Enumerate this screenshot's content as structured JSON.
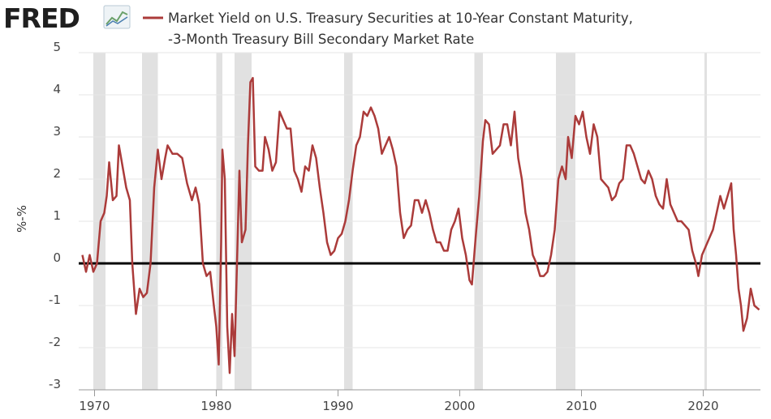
{
  "brand": "FRED",
  "chart_data": {
    "type": "line",
    "title_lines": [
      "Market Yield on U.S. Treasury Securities at 10-Year Constant Maturity,",
      "-3-Month Treasury Bill Secondary Market Rate"
    ],
    "y_label": "%-%",
    "series": [
      {
        "name": "Market Yield on U.S. Treasury Securities at 10-Year Constant Maturity, -3-Month Treasury Bill Secondary Market Rate",
        "color": "#ab3b3a",
        "x": [
          1969.0,
          1969.3,
          1969.6,
          1969.9,
          1970.2,
          1970.5,
          1970.8,
          1971.0,
          1971.2,
          1971.5,
          1971.8,
          1972.0,
          1972.3,
          1972.6,
          1972.9,
          1973.1,
          1973.4,
          1973.7,
          1974.0,
          1974.3,
          1974.6,
          1974.9,
          1975.2,
          1975.5,
          1975.8,
          1976.0,
          1976.4,
          1976.8,
          1977.2,
          1977.6,
          1978.0,
          1978.3,
          1978.6,
          1978.9,
          1979.2,
          1979.5,
          1979.8,
          1980.0,
          1980.2,
          1980.4,
          1980.5,
          1980.7,
          1980.9,
          1981.1,
          1981.3,
          1981.5,
          1981.7,
          1981.9,
          1982.1,
          1982.4,
          1982.6,
          1982.8,
          1983.0,
          1983.2,
          1983.5,
          1983.8,
          1984.0,
          1984.3,
          1984.6,
          1984.9,
          1985.2,
          1985.5,
          1985.8,
          1986.1,
          1986.4,
          1986.7,
          1987.0,
          1987.3,
          1987.6,
          1987.9,
          1988.2,
          1988.5,
          1988.8,
          1989.1,
          1989.4,
          1989.7,
          1990.0,
          1990.3,
          1990.6,
          1990.9,
          1991.2,
          1991.5,
          1991.8,
          1992.1,
          1992.4,
          1992.7,
          1993.0,
          1993.3,
          1993.6,
          1993.9,
          1994.2,
          1994.5,
          1994.8,
          1995.1,
          1995.4,
          1995.7,
          1996.0,
          1996.3,
          1996.6,
          1996.9,
          1997.2,
          1997.5,
          1997.8,
          1998.1,
          1998.4,
          1998.7,
          1999.0,
          1999.3,
          1999.6,
          1999.9,
          2000.2,
          2000.5,
          2000.8,
          2001.0,
          2001.3,
          2001.6,
          2001.9,
          2002.1,
          2002.4,
          2002.7,
          2003.0,
          2003.3,
          2003.6,
          2003.9,
          2004.2,
          2004.5,
          2004.8,
          2005.1,
          2005.4,
          2005.7,
          2006.0,
          2006.3,
          2006.6,
          2006.9,
          2007.2,
          2007.5,
          2007.8,
          2008.1,
          2008.4,
          2008.7,
          2008.9,
          2009.2,
          2009.5,
          2009.8,
          2010.1,
          2010.4,
          2010.7,
          2011.0,
          2011.3,
          2011.6,
          2011.9,
          2012.2,
          2012.5,
          2012.8,
          2013.1,
          2013.4,
          2013.7,
          2014.0,
          2014.3,
          2014.6,
          2014.9,
          2015.2,
          2015.5,
          2015.8,
          2016.1,
          2016.4,
          2016.7,
          2017.0,
          2017.3,
          2017.6,
          2017.9,
          2018.2,
          2018.5,
          2018.8,
          2019.1,
          2019.4,
          2019.6,
          2019.9,
          2020.2,
          2020.5,
          2020.8,
          2021.1,
          2021.4,
          2021.7,
          2022.0,
          2022.3,
          2022.5,
          2022.7,
          2022.9,
          2023.1,
          2023.3,
          2023.6,
          2023.9,
          2024.2,
          2024.6
        ],
        "values": [
          0.2,
          -0.2,
          0.2,
          -0.2,
          0.0,
          1.0,
          1.2,
          1.6,
          2.4,
          1.5,
          1.6,
          2.8,
          2.3,
          1.8,
          1.5,
          0.0,
          -1.2,
          -0.6,
          -0.8,
          -0.7,
          0.0,
          1.8,
          2.7,
          2.0,
          2.5,
          2.8,
          2.6,
          2.6,
          2.5,
          1.9,
          1.5,
          1.8,
          1.4,
          0.0,
          -0.3,
          -0.2,
          -1.0,
          -1.5,
          -2.4,
          0.5,
          2.7,
          2.0,
          -1.5,
          -2.6,
          -1.2,
          -2.2,
          0.0,
          2.2,
          0.5,
          0.8,
          2.8,
          4.3,
          4.4,
          2.3,
          2.2,
          2.2,
          3.0,
          2.7,
          2.2,
          2.4,
          3.6,
          3.4,
          3.2,
          3.2,
          2.2,
          2.0,
          1.7,
          2.3,
          2.2,
          2.8,
          2.5,
          1.8,
          1.2,
          0.5,
          0.2,
          0.3,
          0.6,
          0.7,
          1.0,
          1.5,
          2.2,
          2.8,
          3.0,
          3.6,
          3.5,
          3.7,
          3.5,
          3.2,
          2.6,
          2.8,
          3.0,
          2.7,
          2.3,
          1.2,
          0.6,
          0.8,
          0.9,
          1.5,
          1.5,
          1.2,
          1.5,
          1.2,
          0.8,
          0.5,
          0.5,
          0.3,
          0.3,
          0.8,
          1.0,
          1.3,
          0.6,
          0.2,
          -0.4,
          -0.5,
          0.6,
          1.6,
          2.9,
          3.4,
          3.3,
          2.6,
          2.7,
          2.8,
          3.3,
          3.3,
          2.8,
          3.6,
          2.5,
          2.0,
          1.2,
          0.8,
          0.2,
          0.0,
          -0.3,
          -0.3,
          -0.2,
          0.2,
          0.8,
          2.0,
          2.3,
          2.0,
          3.0,
          2.5,
          3.5,
          3.3,
          3.6,
          3.0,
          2.6,
          3.3,
          3.0,
          2.0,
          1.9,
          1.8,
          1.5,
          1.6,
          1.9,
          2.0,
          2.8,
          2.8,
          2.6,
          2.3,
          2.0,
          1.9,
          2.2,
          2.0,
          1.6,
          1.4,
          1.3,
          2.0,
          1.4,
          1.2,
          1.0,
          1.0,
          0.9,
          0.8,
          0.3,
          0.0,
          -0.3,
          0.2,
          0.4,
          0.6,
          0.8,
          1.2,
          1.6,
          1.3,
          1.6,
          1.9,
          0.8,
          0.2,
          -0.6,
          -1.0,
          -1.6,
          -1.3,
          -0.6,
          -1.0,
          -1.1
        ]
      }
    ],
    "recessions": [
      [
        1969.9,
        1970.9
      ],
      [
        1973.9,
        1975.2
      ],
      [
        1980.0,
        1980.5
      ],
      [
        1981.5,
        1982.9
      ],
      [
        1990.5,
        1991.2
      ],
      [
        2001.2,
        2001.9
      ],
      [
        2007.9,
        2009.5
      ],
      [
        2020.1,
        2020.3
      ]
    ],
    "recession_color": "#e1e1e1",
    "xlim": [
      1968.7,
      2024.7
    ],
    "xticks": [
      1970,
      1980,
      1990,
      2000,
      2010,
      2020
    ],
    "ylim": [
      -3,
      5
    ],
    "yticks": [
      -3,
      -2,
      -1,
      0,
      1,
      2,
      3,
      4,
      5
    ],
    "grid": true,
    "zero_line": true
  }
}
